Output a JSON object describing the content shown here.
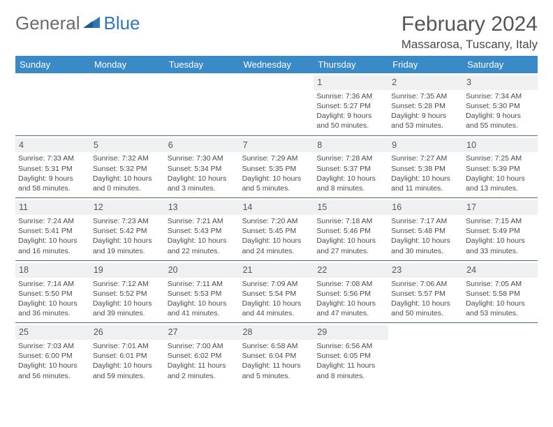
{
  "logo": {
    "word1": "General",
    "word2": "Blue"
  },
  "title": "February 2024",
  "location": "Massarosa, Tuscany, Italy",
  "colors": {
    "header_bg": "#3a8ac8",
    "header_text": "#ffffff",
    "divider": "#4a6a8a",
    "daynum_bg": "#eef0f2",
    "text": "#4a4a4a",
    "logo_gray": "#6b6b6b",
    "logo_blue": "#2f78b7"
  },
  "day_labels": [
    "Sunday",
    "Monday",
    "Tuesday",
    "Wednesday",
    "Thursday",
    "Friday",
    "Saturday"
  ],
  "weeks": [
    [
      null,
      null,
      null,
      null,
      {
        "n": "1",
        "sr": "7:36 AM",
        "ss": "5:27 PM",
        "dl": "9 hours and 50 minutes."
      },
      {
        "n": "2",
        "sr": "7:35 AM",
        "ss": "5:28 PM",
        "dl": "9 hours and 53 minutes."
      },
      {
        "n": "3",
        "sr": "7:34 AM",
        "ss": "5:30 PM",
        "dl": "9 hours and 55 minutes."
      }
    ],
    [
      {
        "n": "4",
        "sr": "7:33 AM",
        "ss": "5:31 PM",
        "dl": "9 hours and 58 minutes."
      },
      {
        "n": "5",
        "sr": "7:32 AM",
        "ss": "5:32 PM",
        "dl": "10 hours and 0 minutes."
      },
      {
        "n": "6",
        "sr": "7:30 AM",
        "ss": "5:34 PM",
        "dl": "10 hours and 3 minutes."
      },
      {
        "n": "7",
        "sr": "7:29 AM",
        "ss": "5:35 PM",
        "dl": "10 hours and 5 minutes."
      },
      {
        "n": "8",
        "sr": "7:28 AM",
        "ss": "5:37 PM",
        "dl": "10 hours and 8 minutes."
      },
      {
        "n": "9",
        "sr": "7:27 AM",
        "ss": "5:38 PM",
        "dl": "10 hours and 11 minutes."
      },
      {
        "n": "10",
        "sr": "7:25 AM",
        "ss": "5:39 PM",
        "dl": "10 hours and 13 minutes."
      }
    ],
    [
      {
        "n": "11",
        "sr": "7:24 AM",
        "ss": "5:41 PM",
        "dl": "10 hours and 16 minutes."
      },
      {
        "n": "12",
        "sr": "7:23 AM",
        "ss": "5:42 PM",
        "dl": "10 hours and 19 minutes."
      },
      {
        "n": "13",
        "sr": "7:21 AM",
        "ss": "5:43 PM",
        "dl": "10 hours and 22 minutes."
      },
      {
        "n": "14",
        "sr": "7:20 AM",
        "ss": "5:45 PM",
        "dl": "10 hours and 24 minutes."
      },
      {
        "n": "15",
        "sr": "7:18 AM",
        "ss": "5:46 PM",
        "dl": "10 hours and 27 minutes."
      },
      {
        "n": "16",
        "sr": "7:17 AM",
        "ss": "5:48 PM",
        "dl": "10 hours and 30 minutes."
      },
      {
        "n": "17",
        "sr": "7:15 AM",
        "ss": "5:49 PM",
        "dl": "10 hours and 33 minutes."
      }
    ],
    [
      {
        "n": "18",
        "sr": "7:14 AM",
        "ss": "5:50 PM",
        "dl": "10 hours and 36 minutes."
      },
      {
        "n": "19",
        "sr": "7:12 AM",
        "ss": "5:52 PM",
        "dl": "10 hours and 39 minutes."
      },
      {
        "n": "20",
        "sr": "7:11 AM",
        "ss": "5:53 PM",
        "dl": "10 hours and 41 minutes."
      },
      {
        "n": "21",
        "sr": "7:09 AM",
        "ss": "5:54 PM",
        "dl": "10 hours and 44 minutes."
      },
      {
        "n": "22",
        "sr": "7:08 AM",
        "ss": "5:56 PM",
        "dl": "10 hours and 47 minutes."
      },
      {
        "n": "23",
        "sr": "7:06 AM",
        "ss": "5:57 PM",
        "dl": "10 hours and 50 minutes."
      },
      {
        "n": "24",
        "sr": "7:05 AM",
        "ss": "5:58 PM",
        "dl": "10 hours and 53 minutes."
      }
    ],
    [
      {
        "n": "25",
        "sr": "7:03 AM",
        "ss": "6:00 PM",
        "dl": "10 hours and 56 minutes."
      },
      {
        "n": "26",
        "sr": "7:01 AM",
        "ss": "6:01 PM",
        "dl": "10 hours and 59 minutes."
      },
      {
        "n": "27",
        "sr": "7:00 AM",
        "ss": "6:02 PM",
        "dl": "11 hours and 2 minutes."
      },
      {
        "n": "28",
        "sr": "6:58 AM",
        "ss": "6:04 PM",
        "dl": "11 hours and 5 minutes."
      },
      {
        "n": "29",
        "sr": "6:56 AM",
        "ss": "6:05 PM",
        "dl": "11 hours and 8 minutes."
      },
      null,
      null
    ]
  ],
  "labels": {
    "sunrise": "Sunrise: ",
    "sunset": "Sunset: ",
    "daylight": "Daylight: "
  }
}
